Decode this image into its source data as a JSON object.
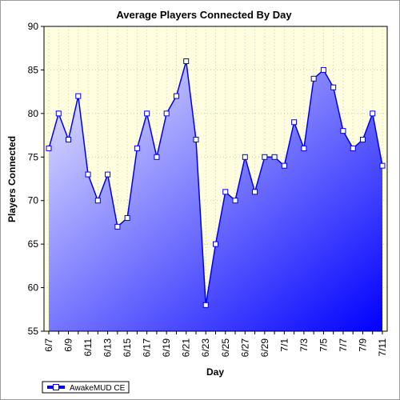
{
  "chart_data": {
    "type": "area",
    "title": "Average Players Connected By Day",
    "xlabel": "Day",
    "ylabel": "Players Connected",
    "ylim": [
      55,
      90
    ],
    "yticks": [
      55,
      60,
      65,
      70,
      75,
      80,
      85,
      90
    ],
    "categories": [
      "6/7",
      "6/8",
      "6/9",
      "6/10",
      "6/11",
      "6/12",
      "6/13",
      "6/14",
      "6/15",
      "6/16",
      "6/17",
      "6/18",
      "6/19",
      "6/20",
      "6/21",
      "6/22",
      "6/23",
      "6/24",
      "6/25",
      "6/26",
      "6/27",
      "6/28",
      "6/29",
      "6/30",
      "7/1",
      "7/2",
      "7/3",
      "7/4",
      "7/5",
      "7/6",
      "7/7",
      "7/8",
      "7/9",
      "7/10",
      "7/11"
    ],
    "xtick_labels": [
      "6/7",
      "6/9",
      "6/11",
      "6/13",
      "6/15",
      "6/17",
      "6/19",
      "6/21",
      "6/23",
      "6/25",
      "6/27",
      "6/29",
      "7/1",
      "7/3",
      "7/5",
      "7/7",
      "7/9",
      "7/11"
    ],
    "series": [
      {
        "name": "AwakeMUD CE",
        "values": [
          76,
          80,
          77,
          82,
          73,
          70,
          73,
          67,
          68,
          76,
          80,
          75,
          80,
          82,
          86,
          77,
          58,
          65,
          71,
          70,
          75,
          71,
          75,
          75,
          74,
          79,
          76,
          84,
          85,
          83,
          78,
          76,
          77,
          80,
          74
        ]
      }
    ],
    "grid": true,
    "legend": "bottom-left",
    "colors": {
      "plot_background": "#ffffe0",
      "line": "#0000ee",
      "fill_light": "#ececff",
      "fill_dark": "#0000ff",
      "marker_fill": "#ffffff"
    }
  }
}
